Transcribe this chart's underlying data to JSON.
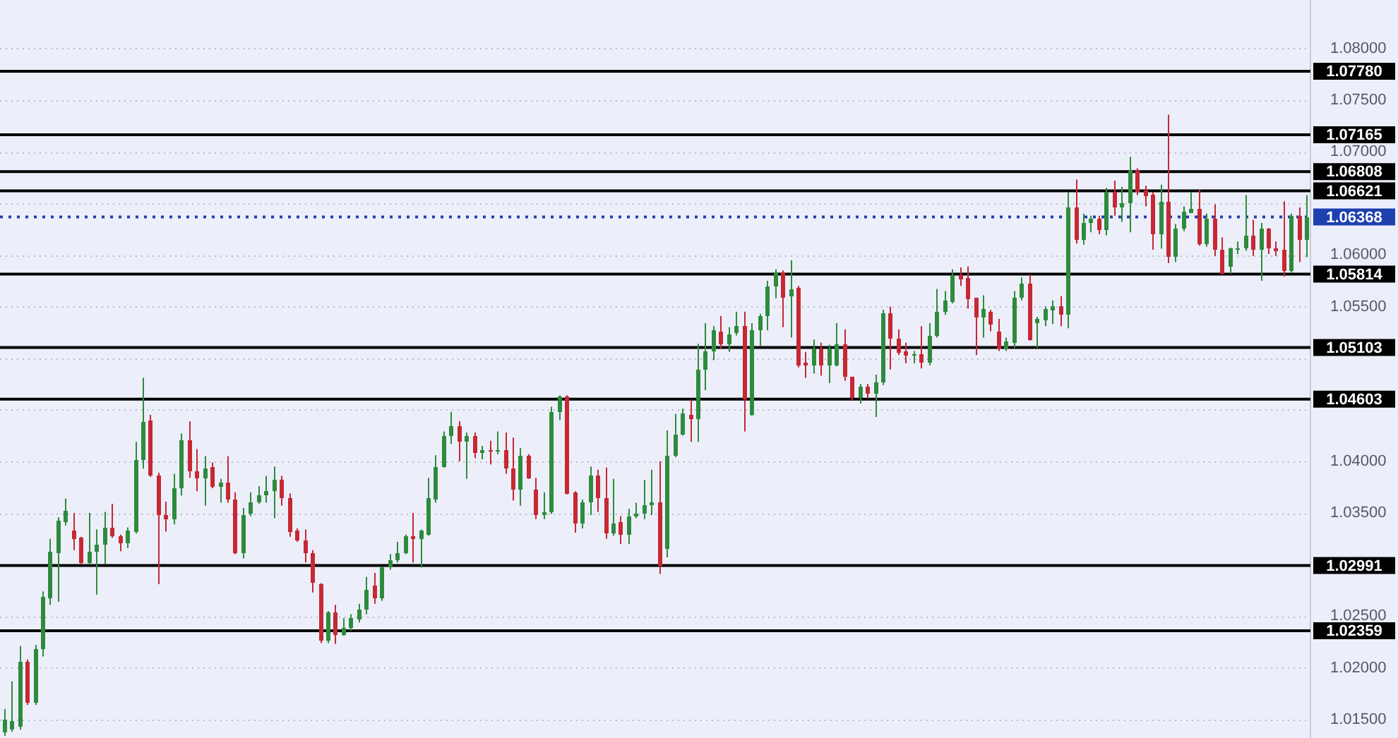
{
  "chart_data": {
    "type": "candlestick",
    "categories": [
      null,
      null,
      null,
      null,
      null,
      null,
      null,
      null,
      null,
      null,
      null,
      null,
      null,
      null,
      null,
      null,
      null,
      null,
      null,
      null,
      null,
      null,
      null,
      null,
      null,
      null,
      null,
      null,
      null,
      null,
      null,
      null,
      null,
      null,
      null,
      null,
      null,
      null,
      null,
      null,
      null,
      null,
      null,
      null,
      null,
      null,
      null,
      null,
      null,
      null,
      null,
      null,
      null,
      null,
      null,
      null,
      null,
      null,
      null,
      null,
      null,
      null,
      null,
      null,
      null,
      null,
      null,
      null,
      null,
      null,
      null,
      null,
      null,
      null,
      null,
      null,
      null,
      null,
      null,
      null,
      null,
      null,
      null,
      null,
      null,
      null,
      null,
      null,
      null,
      null,
      null,
      null,
      null,
      null,
      null,
      null,
      null,
      null,
      null,
      null,
      null,
      null,
      null,
      null,
      null,
      null,
      null,
      null,
      null,
      null,
      null,
      null,
      null,
      null,
      null,
      null,
      null,
      null,
      null,
      null,
      null,
      null,
      null,
      null,
      null,
      null,
      null,
      null,
      null,
      null,
      null,
      null,
      null,
      null,
      null,
      null,
      null,
      null,
      null,
      null,
      null,
      null,
      null,
      null,
      null,
      null,
      null,
      null,
      null,
      null,
      null,
      null,
      null,
      null,
      null,
      null,
      null,
      null,
      null,
      null,
      null,
      null,
      null,
      null,
      null,
      null,
      null,
      null,
      null,
      null
    ],
    "ohlc": [
      [
        1.0138,
        1.016,
        1.0134,
        1.015
      ],
      [
        1.014,
        1.0187,
        1.0138,
        1.0148
      ],
      [
        1.0143,
        1.0221,
        1.014,
        1.0206
      ],
      [
        1.0206,
        1.0208,
        1.0164,
        1.0166
      ],
      [
        1.0166,
        1.0222,
        1.0164,
        1.0218
      ],
      [
        1.0218,
        1.0274,
        1.0211,
        1.0269
      ],
      [
        1.0268,
        1.0325,
        1.0261,
        1.0312
      ],
      [
        1.0311,
        1.0346,
        1.0264,
        1.0342
      ],
      [
        1.0341,
        1.0364,
        1.0338,
        1.0352
      ],
      [
        1.0333,
        1.035,
        1.0314,
        1.0325
      ],
      [
        1.0326,
        1.0327,
        1.03,
        1.0301
      ],
      [
        1.0301,
        1.035,
        1.03,
        1.0313
      ],
      [
        1.0313,
        1.0334,
        1.0271,
        1.0319
      ],
      [
        1.0319,
        1.0351,
        1.03,
        1.0336
      ],
      [
        1.0336,
        1.0359,
        1.0326,
        1.0327
      ],
      [
        1.0327,
        1.0329,
        1.0313,
        1.032
      ],
      [
        1.032,
        1.0336,
        1.0316,
        1.0333
      ],
      [
        1.0332,
        1.0419,
        1.033,
        1.0402
      ],
      [
        1.0402,
        1.0481,
        1.0393,
        1.0438
      ],
      [
        1.0439,
        1.0445,
        1.0385,
        1.0386
      ],
      [
        1.0386,
        1.0389,
        1.0281,
        1.0348
      ],
      [
        1.0348,
        1.0361,
        1.0332,
        1.0344
      ],
      [
        1.0344,
        1.0388,
        1.0339,
        1.0374
      ],
      [
        1.0374,
        1.0427,
        1.0367,
        1.042
      ],
      [
        1.042,
        1.0439,
        1.0384,
        1.039
      ],
      [
        1.0391,
        1.0412,
        1.0371,
        1.0384
      ],
      [
        1.0384,
        1.0405,
        1.0357,
        1.0393
      ],
      [
        1.0394,
        1.0399,
        1.0374,
        1.0376
      ],
      [
        1.0376,
        1.0383,
        1.036,
        1.0379
      ],
      [
        1.0379,
        1.0405,
        1.036,
        1.0363
      ],
      [
        1.0363,
        1.037,
        1.031,
        1.0311
      ],
      [
        1.0311,
        1.0355,
        1.0306,
        1.0348
      ],
      [
        1.0349,
        1.037,
        1.0347,
        1.036
      ],
      [
        1.036,
        1.0376,
        1.0359,
        1.0367
      ],
      [
        1.0367,
        1.0386,
        1.036,
        1.0371
      ],
      [
        1.0371,
        1.0395,
        1.0345,
        1.0382
      ],
      [
        1.0382,
        1.0386,
        1.0357,
        1.0364
      ],
      [
        1.0364,
        1.0369,
        1.0327,
        1.0332
      ],
      [
        1.0333,
        1.0335,
        1.0322,
        1.0323
      ],
      [
        1.0324,
        1.0334,
        1.0302,
        1.0311
      ],
      [
        1.0311,
        1.0314,
        1.0273,
        1.0282
      ],
      [
        1.0281,
        1.0282,
        1.0224,
        1.0226
      ],
      [
        1.0226,
        1.0255,
        1.0224,
        1.0254
      ],
      [
        1.0254,
        1.0261,
        1.0223,
        1.0232
      ],
      [
        1.0232,
        1.0248,
        1.0231,
        1.0239
      ],
      [
        1.0239,
        1.0252,
        1.0236,
        1.0248
      ],
      [
        1.0247,
        1.0262,
        1.0244,
        1.0257
      ],
      [
        1.0256,
        1.0288,
        1.0252,
        1.0275
      ],
      [
        1.028,
        1.0292,
        1.0262,
        1.0268
      ],
      [
        1.0268,
        1.0298,
        1.0265,
        1.0297
      ],
      [
        1.0297,
        1.031,
        1.0295,
        1.0304
      ],
      [
        1.0304,
        1.0322,
        1.0302,
        1.0311
      ],
      [
        1.0311,
        1.0329,
        1.031,
        1.0327
      ],
      [
        1.0327,
        1.035,
        1.0302,
        1.0325
      ],
      [
        1.0325,
        1.0334,
        1.0297,
        1.0333
      ],
      [
        1.0329,
        1.0384,
        1.0328,
        1.0364
      ],
      [
        1.0363,
        1.0406,
        1.036,
        1.0395
      ],
      [
        1.0395,
        1.0429,
        1.0394,
        1.0424
      ],
      [
        1.0424,
        1.0448,
        1.0417,
        1.0434
      ],
      [
        1.0434,
        1.0439,
        1.04,
        1.0419
      ],
      [
        1.0419,
        1.0428,
        1.0383,
        1.0424
      ],
      [
        1.0424,
        1.0428,
        1.0403,
        1.0408
      ],
      [
        1.0408,
        1.0415,
        1.0402,
        1.0411
      ],
      [
        1.0411,
        1.042,
        1.0397,
        1.0409
      ],
      [
        1.0409,
        1.0429,
        1.0407,
        1.0411
      ],
      [
        1.0411,
        1.0428,
        1.0388,
        1.0393
      ],
      [
        1.0393,
        1.0423,
        1.0362,
        1.0373
      ],
      [
        1.0373,
        1.0413,
        1.0357,
        1.0406
      ],
      [
        1.0406,
        1.0407,
        1.0383,
        1.0384
      ],
      [
        1.0373,
        1.0384,
        1.0344,
        1.0348
      ],
      [
        1.0348,
        1.037,
        1.0344,
        1.0351
      ],
      [
        1.0351,
        1.0453,
        1.0349,
        1.0448
      ],
      [
        1.0448,
        1.0464,
        1.044,
        1.0463
      ],
      [
        1.0463,
        1.0464,
        1.0368,
        1.0369
      ],
      [
        1.037,
        1.0371,
        1.0331,
        1.034
      ],
      [
        1.034,
        1.0363,
        1.0335,
        1.036
      ],
      [
        1.036,
        1.0395,
        1.0348,
        1.0386
      ],
      [
        1.0386,
        1.0392,
        1.0351,
        1.0365
      ],
      [
        1.0365,
        1.0394,
        1.0325,
        1.033
      ],
      [
        1.033,
        1.0383,
        1.0328,
        1.034
      ],
      [
        1.0341,
        1.0347,
        1.032,
        1.0329
      ],
      [
        1.0329,
        1.0354,
        1.032,
        1.0347
      ],
      [
        1.0347,
        1.036,
        1.0345,
        1.035
      ],
      [
        1.0349,
        1.0382,
        1.0344,
        1.0358
      ],
      [
        1.0358,
        1.0392,
        1.0348,
        1.036
      ],
      [
        1.036,
        1.04,
        1.0291,
        1.0299
      ],
      [
        1.0315,
        1.043,
        1.0307,
        1.0406
      ],
      [
        1.0406,
        1.0446,
        1.0404,
        1.0426
      ],
      [
        1.0426,
        1.0451,
        1.0425,
        1.0446
      ],
      [
        1.0445,
        1.046,
        1.0419,
        1.0441
      ],
      [
        1.0441,
        1.0514,
        1.0419,
        1.0489
      ],
      [
        1.0489,
        1.0534,
        1.0469,
        1.0507
      ],
      [
        1.0507,
        1.0531,
        1.0498,
        1.0527
      ],
      [
        1.0526,
        1.0541,
        1.0509,
        1.0513
      ],
      [
        1.0513,
        1.053,
        1.0506,
        1.0523
      ],
      [
        1.0524,
        1.0545,
        1.0522,
        1.0531
      ],
      [
        1.0531,
        1.0545,
        1.0429,
        1.046
      ],
      [
        1.0445,
        1.0534,
        1.0444,
        1.0527
      ],
      [
        1.0527,
        1.0543,
        1.0512,
        1.0541
      ],
      [
        1.0541,
        1.0575,
        1.0527,
        1.0569
      ],
      [
        1.0569,
        1.0586,
        1.0558,
        1.0583
      ],
      [
        1.0583,
        1.0585,
        1.053,
        1.0559
      ],
      [
        1.056,
        1.0595,
        1.052,
        1.0567
      ],
      [
        1.0568,
        1.057,
        1.0491,
        1.0493
      ],
      [
        1.0496,
        1.0506,
        1.0481,
        1.0493
      ],
      [
        1.0493,
        1.0518,
        1.0485,
        1.0509
      ],
      [
        1.0509,
        1.0515,
        1.0483,
        1.0493
      ],
      [
        1.0493,
        1.0513,
        1.0476,
        1.0509
      ],
      [
        1.0493,
        1.0534,
        1.0492,
        1.0514
      ],
      [
        1.0514,
        1.0528,
        1.0478,
        1.0482
      ],
      [
        1.0482,
        1.0482,
        1.0459,
        1.0461
      ],
      [
        1.0461,
        1.0475,
        1.0456,
        1.0473
      ],
      [
        1.0473,
        1.0475,
        1.0461,
        1.0466
      ],
      [
        1.0466,
        1.0484,
        1.0443,
        1.0476
      ],
      [
        1.0476,
        1.0547,
        1.0474,
        1.0543
      ],
      [
        1.0543,
        1.055,
        1.0489,
        1.0519
      ],
      [
        1.0519,
        1.0528,
        1.0503,
        1.0505
      ],
      [
        1.0506,
        1.0515,
        1.0495,
        1.0502
      ],
      [
        1.0502,
        1.0507,
        1.0495,
        1.0504
      ],
      [
        1.0504,
        1.0531,
        1.049,
        1.0495
      ],
      [
        1.0495,
        1.0534,
        1.0493,
        1.0521
      ],
      [
        1.0521,
        1.0567,
        1.052,
        1.0545
      ],
      [
        1.0545,
        1.0565,
        1.0542,
        1.0556
      ],
      [
        1.0554,
        1.0586,
        1.0553,
        1.058
      ],
      [
        1.0581,
        1.0588,
        1.057,
        1.0576
      ],
      [
        1.0578,
        1.0589,
        1.0548,
        1.0557
      ],
      [
        1.0558,
        1.0558,
        1.0503,
        1.0539
      ],
      [
        1.0539,
        1.0561,
        1.052,
        1.0547
      ],
      [
        1.0545,
        1.0547,
        1.0526,
        1.0532
      ],
      [
        1.0526,
        1.0538,
        1.0507,
        1.051
      ],
      [
        1.051,
        1.052,
        1.0507,
        1.0516
      ],
      [
        1.0515,
        1.0565,
        1.051,
        1.0559
      ],
      [
        1.0558,
        1.0578,
        1.0556,
        1.0572
      ],
      [
        1.0572,
        1.0581,
        1.0517,
        1.0517
      ],
      [
        1.0534,
        1.054,
        1.051,
        1.0538
      ],
      [
        1.0537,
        1.055,
        1.0531,
        1.0547
      ],
      [
        1.0546,
        1.0556,
        1.0533,
        1.0551
      ],
      [
        1.0551,
        1.056,
        1.0531,
        1.0542
      ],
      [
        1.0542,
        1.0661,
        1.0529,
        1.0646
      ],
      [
        1.0646,
        1.0673,
        1.0611,
        1.0614
      ],
      [
        1.0614,
        1.064,
        1.061,
        1.0631
      ],
      [
        1.0631,
        1.0638,
        1.0622,
        1.0635
      ],
      [
        1.0635,
        1.0638,
        1.062,
        1.0624
      ],
      [
        1.0624,
        1.0665,
        1.0619,
        1.0661
      ],
      [
        1.0661,
        1.0672,
        1.0638,
        1.0646
      ],
      [
        1.0646,
        1.0666,
        1.0632,
        1.065
      ],
      [
        1.065,
        1.0695,
        1.0622,
        1.0681
      ],
      [
        1.0682,
        1.0684,
        1.0658,
        1.0661
      ],
      [
        1.0663,
        1.0667,
        1.0647,
        1.0657
      ],
      [
        1.0658,
        1.0661,
        1.0605,
        1.062
      ],
      [
        1.062,
        1.0668,
        1.0606,
        1.0651
      ],
      [
        1.0651,
        1.0736,
        1.0592,
        1.0598
      ],
      [
        1.0598,
        1.063,
        1.0593,
        1.0626
      ],
      [
        1.0626,
        1.0647,
        1.0623,
        1.0642
      ],
      [
        1.0641,
        1.0661,
        1.0641,
        1.0645
      ],
      [
        1.0645,
        1.0663,
        1.0609,
        1.061
      ],
      [
        1.061,
        1.064,
        1.0608,
        1.0635
      ],
      [
        1.0635,
        1.0649,
        1.0599,
        1.0605
      ],
      [
        1.0605,
        1.0617,
        1.0581,
        1.0582
      ],
      [
        1.0589,
        1.0607,
        1.0582,
        1.0606
      ],
      [
        1.0606,
        1.0613,
        1.0601,
        1.0607
      ],
      [
        1.0606,
        1.0658,
        1.0604,
        1.0619
      ],
      [
        1.0619,
        1.0634,
        1.0599,
        1.0605
      ],
      [
        1.0605,
        1.0631,
        1.0575,
        1.0625
      ],
      [
        1.0625,
        1.0626,
        1.0601,
        1.0607
      ],
      [
        1.0607,
        1.0613,
        1.0599,
        1.0604
      ],
      [
        1.0605,
        1.0652,
        1.0579,
        1.0585
      ],
      [
        1.0585,
        1.064,
        1.0583,
        1.0638
      ],
      [
        1.0638,
        1.0646,
        1.0593,
        1.0614
      ],
      [
        1.0614,
        1.0658,
        1.0598,
        1.0637
      ]
    ],
    "ylim": [
      1.0132,
      1.0847
    ],
    "yticks": [
      {
        "value": 1.015,
        "label": "1.01500"
      },
      {
        "value": 1.02,
        "label": "1.02000"
      },
      {
        "value": 1.025,
        "label": "1.02500"
      },
      {
        "value": 1.03,
        "label": null
      },
      {
        "value": 1.035,
        "label": "1.03500"
      },
      {
        "value": 1.04,
        "label": "1.04000"
      },
      {
        "value": 1.045,
        "label": null
      },
      {
        "value": 1.05,
        "label": null
      },
      {
        "value": 1.055,
        "label": "1.05500"
      },
      {
        "value": 1.06,
        "label": "1.06000"
      },
      {
        "value": 1.065,
        "label": null
      },
      {
        "value": 1.07,
        "label": "1.07000"
      },
      {
        "value": 1.075,
        "label": "1.07500"
      },
      {
        "value": 1.08,
        "label": "1.08000"
      }
    ],
    "ref_lines": [
      {
        "axis": "y",
        "value": 1.0778,
        "label": "1.07780",
        "color": "#000000",
        "line_style": "solid"
      },
      {
        "axis": "y",
        "value": 1.07165,
        "label": "1.07165",
        "color": "#000000",
        "line_style": "solid"
      },
      {
        "axis": "y",
        "value": 1.06808,
        "label": "1.06808",
        "color": "#000000",
        "line_style": "solid"
      },
      {
        "axis": "y",
        "value": 1.06621,
        "label": "1.06621",
        "color": "#000000",
        "line_style": "solid"
      },
      {
        "axis": "y",
        "value": 1.06368,
        "label": "1.06368",
        "color": "#1e40af",
        "line_style": "dotted"
      },
      {
        "axis": "y",
        "value": 1.05814,
        "label": "1.05814",
        "color": "#000000",
        "line_style": "solid"
      },
      {
        "axis": "y",
        "value": 1.05103,
        "label": "1.05103",
        "color": "#000000",
        "line_style": "solid"
      },
      {
        "axis": "y",
        "value": 1.04603,
        "label": "1.04603",
        "color": "#000000",
        "line_style": "solid"
      },
      {
        "axis": "y",
        "value": 1.02991,
        "label": "1.02991",
        "color": "#000000",
        "line_style": "solid"
      },
      {
        "axis": "y",
        "value": 1.02359,
        "label": "1.02359",
        "color": "#000000",
        "line_style": "solid"
      }
    ],
    "grid": "y",
    "tick_labels": "y"
  }
}
